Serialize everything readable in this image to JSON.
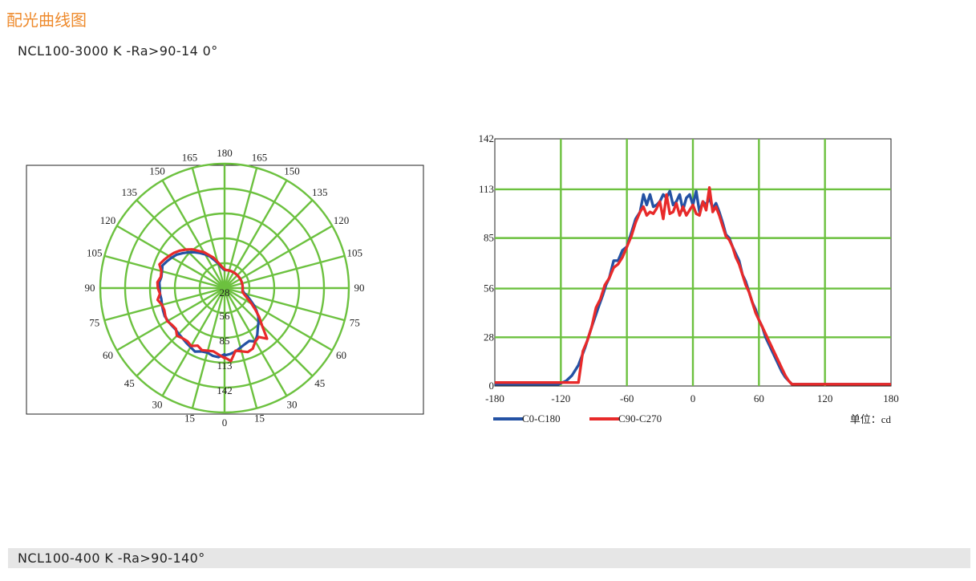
{
  "page": {
    "heading": "配光曲线图",
    "heading_color": "#ee8a2c",
    "model_title": "NCL100-3000 K -Ra>90-14 0°",
    "footer_model": "NCL100-400 K -Ra>90-140°"
  },
  "colors": {
    "grid": "#6cc13f",
    "series_c0": "#2452a4",
    "series_c90": "#e82a2a"
  },
  "chart_data": [
    {
      "type": "polar",
      "angle_labels": [
        "180",
        "165",
        "165",
        "150",
        "150",
        "135",
        "135",
        "120",
        "120",
        "105",
        "105",
        "90",
        "90",
        "75",
        "75",
        "60",
        "60",
        "45",
        "45",
        "30",
        "30",
        "15",
        "15",
        "0"
      ],
      "radial_labels": [
        "28",
        "56",
        "85",
        "113",
        "142"
      ],
      "rmax": 142,
      "grid": true,
      "series": [
        {
          "name": "C0-C180",
          "angle_step_deg": 5,
          "values": [
            104,
            102,
            99,
            95,
            92,
            90,
            95,
            88,
            80,
            74,
            68,
            60,
            52,
            44,
            38,
            32,
            29,
            28,
            28,
            28,
            28,
            28,
            28,
            28,
            28,
            28,
            28,
            28,
            28,
            28,
            28,
            28,
            28,
            28,
            28,
            28,
            28,
            30,
            34,
            40,
            46,
            54,
            60,
            66,
            72,
            78,
            84,
            90,
            94,
            98,
            102,
            100,
            99,
            101,
            100,
            100,
            99,
            100,
            101,
            102,
            101,
            100,
            99,
            100,
            101,
            103,
            105,
            108,
            104,
            103,
            106,
            107,
            102
          ]
        },
        {
          "name": "C90-C270",
          "angle_step_deg": 5,
          "values": [
            107,
            113,
            98,
            101,
            105,
            103,
            95,
            92,
            102,
            82,
            70,
            58,
            48,
            40,
            34,
            30,
            28,
            28,
            28,
            28,
            28,
            28,
            28,
            28,
            28,
            28,
            28,
            28,
            28,
            28,
            28,
            28,
            28,
            28,
            28,
            28,
            29,
            32,
            36,
            42,
            50,
            56,
            64,
            70,
            78,
            84,
            90,
            95,
            99,
            103,
            107,
            101,
            100,
            104,
            103,
            100,
            105,
            100,
            99,
            101,
            102,
            99,
            98,
            104,
            101,
            100,
            103,
            98,
            102,
            100,
            99,
            103,
            108
          ]
        }
      ]
    },
    {
      "type": "line",
      "x_ticks": [
        "-180",
        "-120",
        "-60",
        "0",
        "60",
        "120",
        "180"
      ],
      "y_ticks": [
        "0",
        "28",
        "56",
        "85",
        "113",
        "142"
      ],
      "xlim": [
        -180,
        180
      ],
      "ylim": [
        0,
        142
      ],
      "grid": true,
      "legend": "bottom-left",
      "unit_label": "单位：cd",
      "series": [
        {
          "name": "C0-C180",
          "x": [
            -180,
            -130,
            -122,
            -115,
            -110,
            -104,
            -98,
            -92,
            -86,
            -82,
            -79,
            -76,
            -72,
            -68,
            -64,
            -60,
            -56,
            -52,
            -48,
            -45,
            -42,
            -39,
            -36,
            -33,
            -30,
            -27,
            -24,
            -21,
            -18,
            -15,
            -12,
            -9,
            -6,
            -3,
            0,
            3,
            6,
            9,
            12,
            15,
            18,
            21,
            24,
            27,
            30,
            33,
            36,
            39,
            42,
            45,
            48,
            51,
            54,
            57,
            60,
            63,
            66,
            69,
            72,
            75,
            78,
            81,
            84,
            87,
            90,
            93,
            96,
            99,
            102,
            105,
            108,
            111,
            114,
            118,
            124,
            135,
            180
          ],
          "y": [
            1,
            1,
            1,
            3,
            6,
            12,
            22,
            34,
            45,
            52,
            58,
            62,
            72,
            72,
            78,
            80,
            88,
            96,
            100,
            110,
            104,
            110,
            103,
            104,
            106,
            110,
            108,
            112,
            104,
            106,
            110,
            101,
            108,
            110,
            104,
            112,
            100,
            106,
            104,
            108,
            102,
            105,
            100,
            94,
            87,
            85,
            80,
            76,
            72,
            64,
            60,
            54,
            48,
            44,
            38,
            34,
            28,
            24,
            20,
            16,
            12,
            8,
            5,
            3,
            1,
            1,
            1,
            1,
            1,
            1,
            1,
            1,
            1,
            1,
            1,
            1,
            1
          ]
        },
        {
          "name": "C90-C270",
          "x": [
            -180,
            -125,
            -118,
            -112,
            -108,
            -104,
            -100,
            -96,
            -92,
            -88,
            -84,
            -80,
            -76,
            -72,
            -68,
            -64,
            -60,
            -56,
            -52,
            -48,
            -45,
            -42,
            -39,
            -36,
            -33,
            -30,
            -27,
            -24,
            -21,
            -18,
            -15,
            -12,
            -9,
            -6,
            -3,
            0,
            3,
            6,
            9,
            12,
            15,
            18,
            21,
            24,
            27,
            30,
            33,
            36,
            39,
            42,
            45,
            48,
            51,
            54,
            57,
            60,
            63,
            66,
            69,
            72,
            75,
            78,
            81,
            84,
            87,
            90,
            93,
            96,
            99,
            102,
            105,
            108,
            112,
            116,
            120,
            130,
            180
          ],
          "y": [
            2,
            2,
            2,
            2,
            2,
            2,
            20,
            26,
            34,
            45,
            50,
            58,
            62,
            68,
            70,
            74,
            80,
            86,
            94,
            100,
            103,
            98,
            100,
            99,
            102,
            106,
            96,
            110,
            99,
            100,
            105,
            98,
            103,
            98,
            101,
            104,
            99,
            98,
            106,
            101,
            114,
            100,
            103,
            98,
            92,
            86,
            84,
            80,
            74,
            70,
            64,
            58,
            54,
            48,
            42,
            38,
            34,
            30,
            26,
            22,
            18,
            14,
            10,
            6,
            3,
            1,
            1,
            1,
            1,
            1,
            1,
            1,
            1,
            1,
            1,
            1,
            1
          ]
        }
      ]
    }
  ]
}
